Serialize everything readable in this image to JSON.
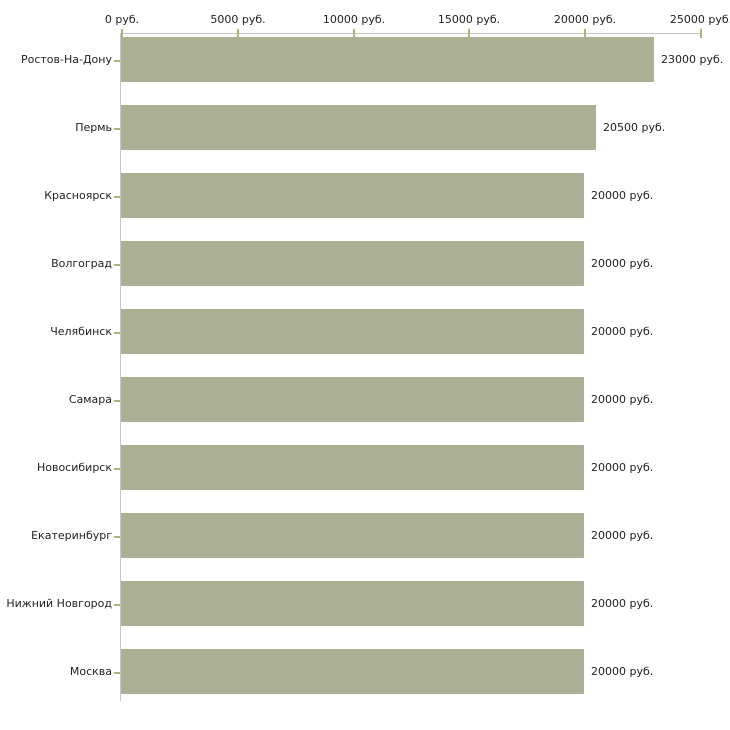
{
  "chart_data": {
    "type": "bar",
    "orientation": "horizontal",
    "title": "",
    "xlabel": "",
    "ylabel": "",
    "xlim": [
      0,
      25000
    ],
    "grid": false,
    "legend": null,
    "x_ticks": [
      {
        "value": 0,
        "label": "0 руб."
      },
      {
        "value": 5000,
        "label": "5000 руб."
      },
      {
        "value": 10000,
        "label": "10000 руб."
      },
      {
        "value": 15000,
        "label": "15000 руб."
      },
      {
        "value": 20000,
        "label": "20000 руб."
      },
      {
        "value": 25000,
        "label": "25000 руб."
      }
    ],
    "categories": [
      "Ростов-На-Дону",
      "Пермь",
      "Красноярск",
      "Волгоград",
      "Челябинск",
      "Самара",
      "Новосибирск",
      "Екатеринбург",
      "Нижний Новгород",
      "Москва"
    ],
    "values": [
      23000,
      20500,
      20000,
      20000,
      20000,
      20000,
      20000,
      20000,
      20000,
      20000
    ],
    "value_labels": [
      "23000 руб.",
      "20500 руб.",
      "20000 руб.",
      "20000 руб.",
      "20000 руб.",
      "20000 руб.",
      "20000 руб.",
      "20000 руб.",
      "20000 руб.",
      "20000 руб."
    ],
    "colors": {
      "bar": "#abb094",
      "axis_line": "#c6c6c6",
      "tick": "#b3b07e",
      "text": "#222222"
    }
  }
}
